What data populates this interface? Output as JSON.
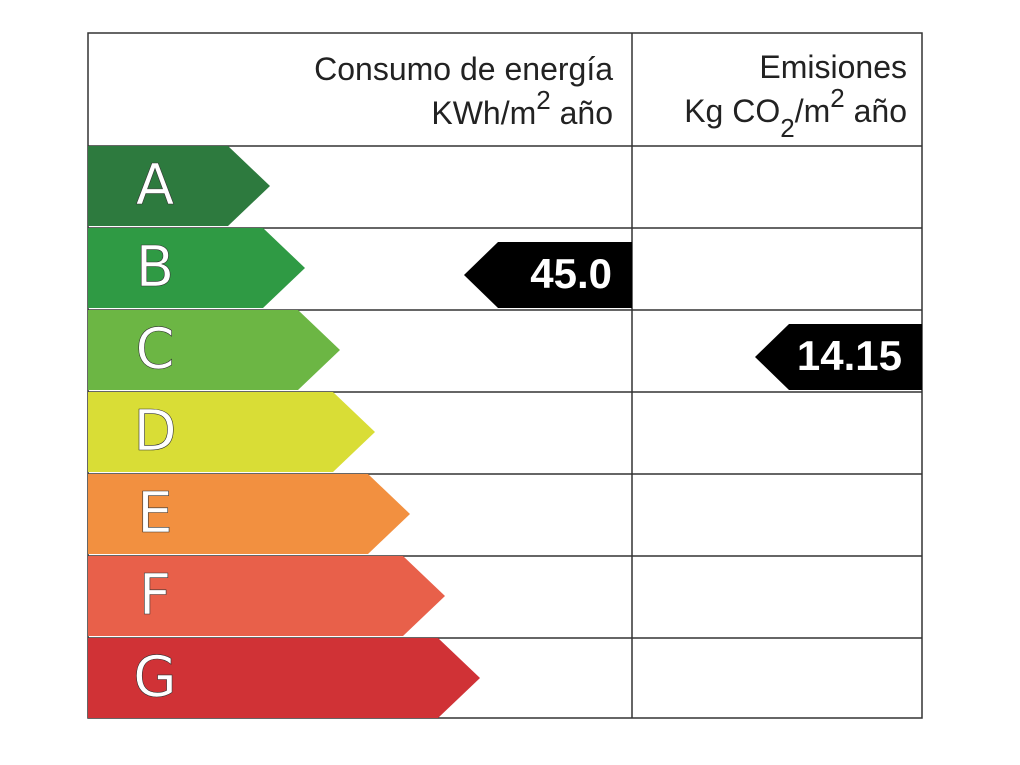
{
  "header": {
    "consumption": {
      "line1": "Consumo de energía",
      "line2": [
        "KWh/m",
        "2",
        " año"
      ]
    },
    "emissions": {
      "line1": "Emisiones",
      "line2": [
        "Kg CO",
        "2",
        "/m",
        "2",
        " año"
      ]
    }
  },
  "ratings": [
    {
      "letter": "A",
      "color": "#2d7a3e"
    },
    {
      "letter": "B",
      "color": "#2f9a44"
    },
    {
      "letter": "C",
      "color": "#6cb644"
    },
    {
      "letter": "D",
      "color": "#d9dd36"
    },
    {
      "letter": "E",
      "color": "#f29040"
    },
    {
      "letter": "F",
      "color": "#e8604a"
    },
    {
      "letter": "G",
      "color": "#d03236"
    }
  ],
  "consumption": {
    "rating": "B",
    "value": 45,
    "value_label": "45.0"
  },
  "emissions": {
    "rating": "C",
    "value": 14.15,
    "value_label": "14.15"
  }
}
